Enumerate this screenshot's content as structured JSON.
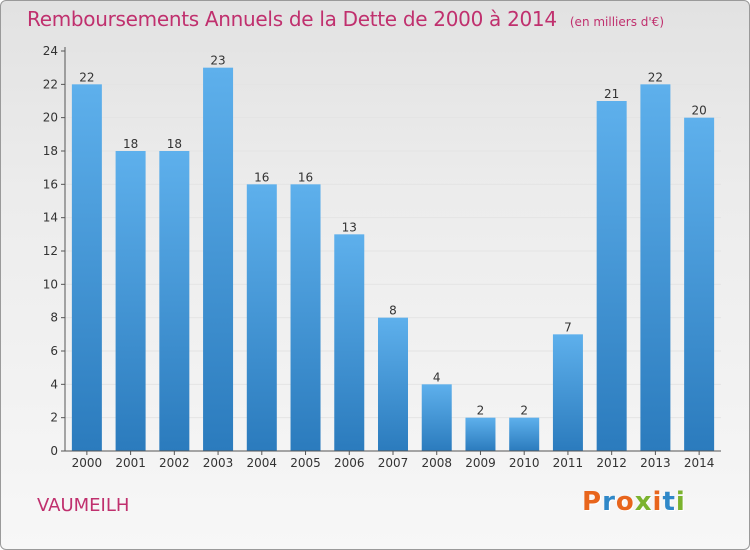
{
  "title": "Remboursements Annuels de la Dette de 2000 à 2014",
  "unit_note": "(en milliers d'€)",
  "commune": "VAUMEILH",
  "logo": {
    "text": "Proxiti",
    "letters": [
      {
        "ch": "P",
        "color": "#e8651c"
      },
      {
        "ch": "r",
        "color": "#2f88c8"
      },
      {
        "ch": "o",
        "color": "#e8651c"
      },
      {
        "ch": "x",
        "color": "#7bb32e"
      },
      {
        "ch": "i",
        "color": "#e8651c"
      },
      {
        "ch": "t",
        "color": "#2f88c8"
      },
      {
        "ch": "i",
        "color": "#7bb32e"
      }
    ]
  },
  "colors": {
    "title": "#c0306e",
    "bar_top": "#5eb0ec",
    "bar_bottom": "#2b7bbd",
    "axis": "#555555",
    "grid": "#e4e4e4"
  },
  "chart_data": {
    "type": "bar",
    "categories": [
      "2000",
      "2001",
      "2002",
      "2003",
      "2004",
      "2005",
      "2006",
      "2007",
      "2008",
      "2009",
      "2010",
      "2011",
      "2012",
      "2013",
      "2014"
    ],
    "values": [
      22,
      18,
      18,
      23,
      16,
      16,
      13,
      8,
      4,
      2,
      2,
      7,
      21,
      22,
      20
    ],
    "ylim": [
      0,
      24
    ],
    "yticks": [
      0,
      2,
      4,
      6,
      8,
      10,
      12,
      14,
      16,
      18,
      20,
      22,
      24
    ],
    "grid": true,
    "legend": "none"
  }
}
